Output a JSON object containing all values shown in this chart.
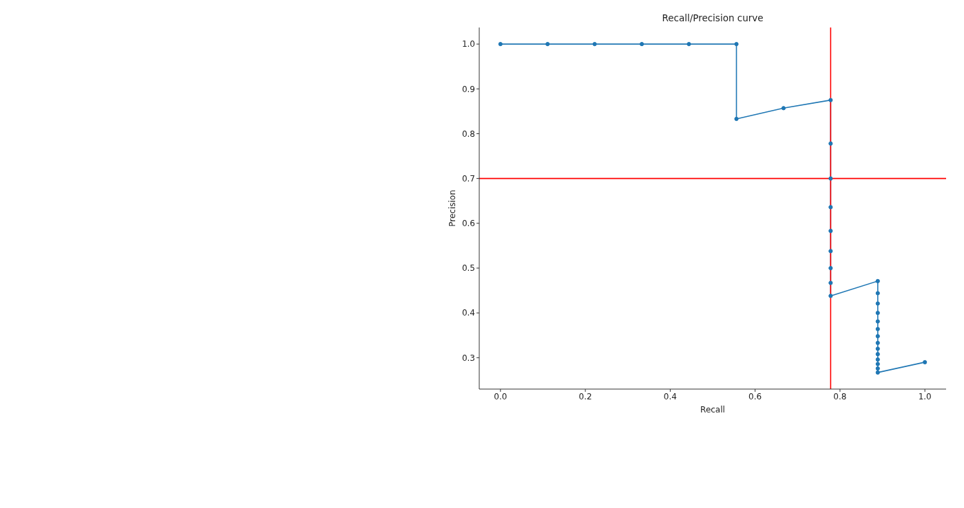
{
  "chart_data": {
    "type": "line",
    "title": "Recall/Precision curve",
    "xlabel": "Recall",
    "ylabel": "Precision",
    "x": [
      0,
      0.111,
      0.222,
      0.333,
      0.444,
      0.556,
      0.556,
      0.667,
      0.778,
      0.778,
      0.778,
      0.778,
      0.778,
      0.778,
      0.778,
      0.778,
      0.778,
      0.889,
      0.889,
      0.889,
      0.889,
      0.889,
      0.889,
      0.889,
      0.889,
      0.889,
      0.889,
      0.889,
      0.889,
      0.889,
      0.889,
      1
    ],
    "values": [
      1,
      1,
      1,
      1,
      1,
      1,
      0.833,
      0.857,
      0.875,
      0.778,
      0.7,
      0.636,
      0.583,
      0.538,
      0.5,
      0.467,
      0.438,
      0.471,
      0.444,
      0.421,
      0.4,
      0.381,
      0.364,
      0.348,
      0.333,
      0.32,
      0.308,
      0.296,
      0.286,
      0.276,
      0.267,
      0.29
    ],
    "color": "#1f77b4",
    "marker": "circle",
    "xlim": [
      -0.05,
      1.05
    ],
    "ylim": [
      0.23,
      1.037
    ],
    "xticks": [
      {
        "value": 0,
        "label": "0.0"
      },
      0.2,
      0.4,
      0.6,
      0.8,
      {
        "value": 1,
        "label": "1.0"
      }
    ],
    "yticks": [
      0.3,
      0.4,
      0.5,
      0.6,
      0.7,
      0.8,
      0.9,
      {
        "value": 1,
        "label": "1.0"
      }
    ],
    "ref_lines": [
      {
        "axis": "x",
        "value": 0.778,
        "color": "#ff0000"
      },
      {
        "axis": "y",
        "value": 0.7,
        "color": "#ff0000"
      }
    ]
  }
}
